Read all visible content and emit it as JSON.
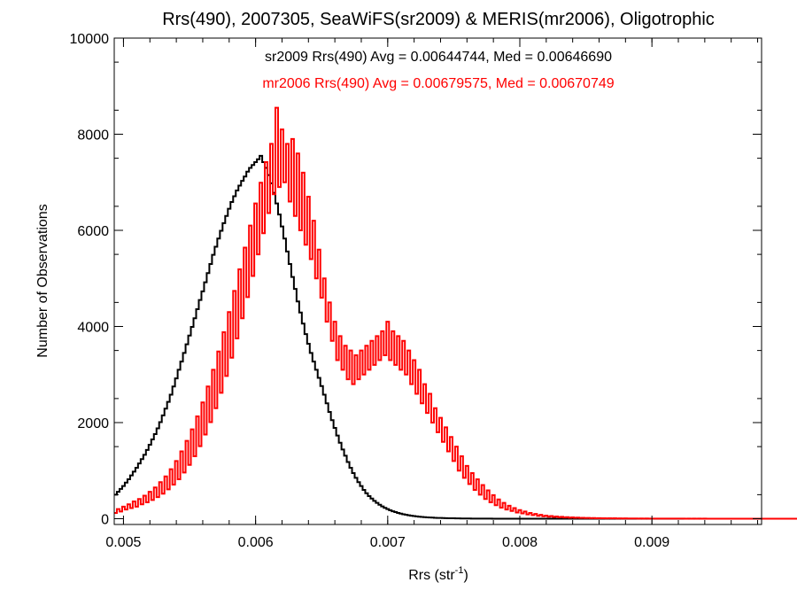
{
  "chart_data": {
    "type": "histogram",
    "title": "Rrs(490), 2007305, SeaWiFS(sr2009) & MERIS(mr2006), Oligotrophic",
    "xlabel": {
      "text": "Rrs (str",
      "superscript": "-1",
      "suffix": ")"
    },
    "ylabel": "Number of Observations",
    "xlim": [
      0.00493,
      0.00983
    ],
    "ylim": [
      -120,
      10000
    ],
    "xticks": [
      {
        "value": 0.005,
        "label": "0.005"
      },
      {
        "value": 0.006,
        "label": "0.006"
      },
      {
        "value": 0.007,
        "label": "0.007"
      },
      {
        "value": 0.008,
        "label": "0.008"
      },
      {
        "value": 0.009,
        "label": "0.009"
      }
    ],
    "yticks": [
      {
        "value": 0,
        "label": "0"
      },
      {
        "value": 2000,
        "label": "2000"
      },
      {
        "value": 4000,
        "label": "4000"
      },
      {
        "value": 6000,
        "label": "6000"
      },
      {
        "value": 8000,
        "label": "8000"
      },
      {
        "value": 10000,
        "label": "10000"
      }
    ],
    "annotations": [
      {
        "text": "sr2009 Rrs(490) Avg = 0.00644744, Med = 0.00646690",
        "color": "#000000"
      },
      {
        "text": "mr2006 Rrs(490) Avg = 0.00679575, Med = 0.00670749",
        "color": "#ff0000"
      }
    ],
    "series": [
      {
        "name": "sr2009",
        "color": "#000000",
        "x_start": 0.00493,
        "bin_width": 2e-05,
        "values": [
          500,
          560,
          620,
          680,
          750,
          820,
          900,
          980,
          1060,
          1150,
          1240,
          1330,
          1430,
          1540,
          1650,
          1760,
          1880,
          2010,
          2150,
          2290,
          2430,
          2580,
          2750,
          2920,
          3100,
          3270,
          3450,
          3630,
          3810,
          3990,
          4170,
          4360,
          4550,
          4730,
          4920,
          5110,
          5300,
          5490,
          5660,
          5830,
          5990,
          6150,
          6300,
          6450,
          6590,
          6710,
          6830,
          6930,
          7030,
          7120,
          7220,
          7300,
          7360,
          7420,
          7480,
          7550,
          7420,
          7300,
          7150,
          6980,
          6780,
          6560,
          6330,
          6080,
          5830,
          5560,
          5300,
          5030,
          4780,
          4520,
          4290,
          4060,
          3840,
          3640,
          3450,
          3270,
          3100,
          2930,
          2760,
          2580,
          2400,
          2220,
          2050,
          1890,
          1730,
          1580,
          1440,
          1310,
          1180,
          1060,
          950,
          850,
          760,
          680,
          600,
          530,
          470,
          420,
          370,
          330,
          290,
          255,
          225,
          200,
          175,
          155,
          137,
          120,
          105,
          93,
          82,
          72,
          63,
          55,
          48,
          42,
          37,
          32,
          28,
          25,
          22,
          19,
          17,
          15,
          13,
          11,
          10,
          9,
          8,
          7,
          6,
          5,
          5,
          4,
          4,
          3,
          3,
          3,
          2,
          2,
          2,
          2,
          2,
          1,
          1,
          1,
          1,
          1,
          1,
          1,
          1,
          1,
          1,
          1,
          1,
          1,
          1,
          1,
          1,
          1,
          1,
          1,
          1,
          1,
          1,
          1,
          1,
          1,
          1,
          1,
          1,
          1,
          1,
          1,
          1,
          1,
          1,
          1,
          1,
          1,
          1,
          1,
          1,
          1,
          1,
          1,
          1,
          1,
          1,
          1,
          1,
          1,
          1,
          1,
          1,
          1,
          1,
          1,
          1,
          1,
          1,
          1,
          1,
          1,
          1,
          1,
          1,
          1,
          1,
          1,
          1,
          1,
          1,
          1,
          1,
          1,
          1,
          1,
          1,
          1,
          1,
          1,
          1,
          1,
          1,
          1,
          1,
          1,
          1,
          1,
          1,
          1,
          1,
          1,
          1,
          1,
          1,
          1,
          1,
          1,
          1,
          1,
          1,
          1,
          1,
          1,
          1,
          1,
          1,
          1,
          1,
          1,
          1,
          1,
          1,
          1,
          1,
          1,
          1,
          1,
          1
        ]
      },
      {
        "name": "mr2006",
        "color": "#ff0000",
        "x_start": 0.00493,
        "bin_width": 2e-05,
        "values": [
          120,
          200,
          150,
          250,
          190,
          300,
          220,
          360,
          250,
          410,
          300,
          480,
          340,
          560,
          390,
          650,
          450,
          760,
          520,
          880,
          610,
          1030,
          710,
          1200,
          820,
          1400,
          960,
          1620,
          1120,
          1860,
          1300,
          2130,
          1510,
          2420,
          1750,
          2750,
          2010,
          3100,
          2300,
          3480,
          2620,
          3880,
          2970,
          4300,
          3350,
          4740,
          3750,
          5190,
          4170,
          5640,
          4610,
          6100,
          5050,
          6560,
          5500,
          6990,
          5940,
          7420,
          6360,
          7800,
          6750,
          8550,
          6900,
          8100,
          7000,
          7800,
          6600,
          7900,
          6300,
          7600,
          6000,
          7200,
          5700,
          6700,
          5400,
          6200,
          5000,
          5600,
          4600,
          5000,
          4100,
          4500,
          3700,
          4100,
          3300,
          3800,
          3100,
          3600,
          2900,
          3500,
          2800,
          3400,
          2900,
          3500,
          3000,
          3600,
          3100,
          3700,
          3200,
          3800,
          3300,
          3900,
          3400,
          4100,
          3300,
          3900,
          3200,
          3800,
          3100,
          3700,
          3000,
          3500,
          2800,
          3300,
          2600,
          3100,
          2400,
          2800,
          2200,
          2600,
          2000,
          2300,
          1800,
          2100,
          1600,
          1900,
          1400,
          1700,
          1200,
          1500,
          1000,
          1300,
          850,
          1100,
          720,
          950,
          600,
          820,
          500,
          700,
          410,
          590,
          340,
          490,
          280,
          400,
          230,
          330,
          190,
          270,
          160,
          220,
          130,
          180,
          110,
          150,
          90,
          120,
          75,
          100,
          60,
          80,
          50,
          65,
          42,
          55,
          36,
          46,
          30,
          38,
          25,
          32,
          21,
          27,
          18,
          23,
          15,
          19,
          13,
          16,
          11,
          14,
          9,
          12,
          8,
          10,
          7,
          9,
          6,
          8,
          5,
          7,
          5,
          6,
          4,
          5,
          4,
          5,
          3,
          4,
          3,
          4,
          3,
          3,
          2,
          3,
          2,
          3,
          2,
          3,
          2,
          2,
          2,
          2,
          2,
          2,
          1,
          2,
          1,
          2,
          1,
          2,
          1,
          2,
          1,
          1,
          1,
          1,
          1,
          1,
          1,
          1,
          1,
          1,
          1,
          1,
          1,
          1,
          1,
          1,
          1,
          1,
          1,
          1,
          1,
          1,
          1,
          1,
          1,
          1,
          1,
          1,
          1,
          1,
          1,
          1,
          1,
          1,
          1,
          1,
          1,
          1,
          1,
          1,
          1,
          1,
          1,
          1,
          1
        ]
      }
    ]
  }
}
